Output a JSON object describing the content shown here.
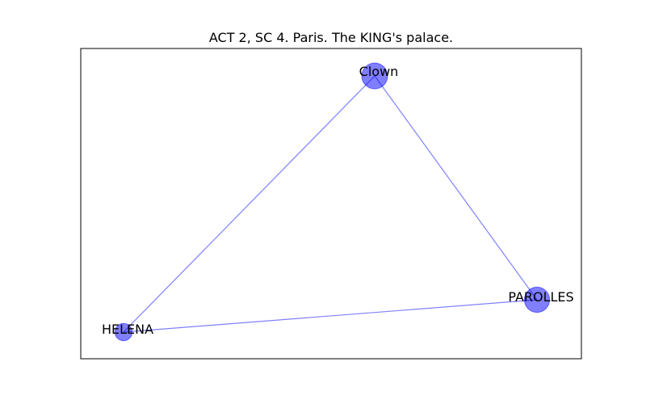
{
  "figure": {
    "title": "ACT 2, SC 4. Paris. The KING's palace."
  },
  "colors": {
    "node_fill": "#0000ff",
    "node_opacity": 0.5,
    "edge": "#0000ff",
    "edge_opacity": 0.5,
    "frame": "#000000"
  },
  "graph": {
    "nodes": [
      {
        "id": "clown",
        "label": "Clown",
        "weight": 1.0
      },
      {
        "id": "parolles",
        "label": "PAROLLES",
        "weight": 0.95
      },
      {
        "id": "helena",
        "label": "HELENA",
        "weight": 0.45
      }
    ],
    "edges": [
      {
        "source": "clown",
        "target": "parolles"
      },
      {
        "source": "clown",
        "target": "helena"
      },
      {
        "source": "helena",
        "target": "parolles"
      }
    ]
  }
}
